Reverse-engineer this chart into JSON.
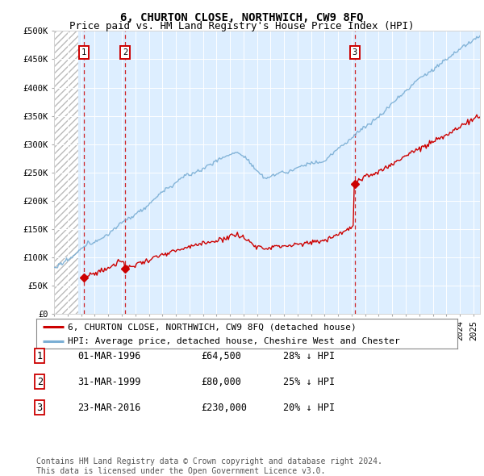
{
  "title": "6, CHURTON CLOSE, NORTHWICH, CW9 8FQ",
  "subtitle": "Price paid vs. HM Land Registry's House Price Index (HPI)",
  "ylabel_ticks": [
    "£0",
    "£50K",
    "£100K",
    "£150K",
    "£200K",
    "£250K",
    "£300K",
    "£350K",
    "£400K",
    "£450K",
    "£500K"
  ],
  "ytick_values": [
    0,
    50000,
    100000,
    150000,
    200000,
    250000,
    300000,
    350000,
    400000,
    450000,
    500000
  ],
  "xlim_start": 1994.0,
  "xlim_end": 2025.5,
  "ylim_min": 0,
  "ylim_max": 500000,
  "sale_dates": [
    1996.17,
    1999.25,
    2016.22
  ],
  "sale_prices": [
    64500,
    80000,
    230000
  ],
  "sale_labels": [
    "1",
    "2",
    "3"
  ],
  "hpi_color": "#7aaed4",
  "price_color": "#cc0000",
  "dashed_color": "#cc0000",
  "plot_bg_color": "#ddeeff",
  "legend_entries": [
    "6, CHURTON CLOSE, NORTHWICH, CW9 8FQ (detached house)",
    "HPI: Average price, detached house, Cheshire West and Chester"
  ],
  "table_data": [
    [
      "1",
      "01-MAR-1996",
      "£64,500",
      "28% ↓ HPI"
    ],
    [
      "2",
      "31-MAR-1999",
      "£80,000",
      "25% ↓ HPI"
    ],
    [
      "3",
      "23-MAR-2016",
      "£230,000",
      "20% ↓ HPI"
    ]
  ],
  "footer_text": "Contains HM Land Registry data © Crown copyright and database right 2024.\nThis data is licensed under the Open Government Licence v3.0.",
  "title_fontsize": 10,
  "subtitle_fontsize": 9,
  "tick_fontsize": 7.5,
  "legend_fontsize": 8,
  "table_fontsize": 8.5,
  "footer_fontsize": 7
}
